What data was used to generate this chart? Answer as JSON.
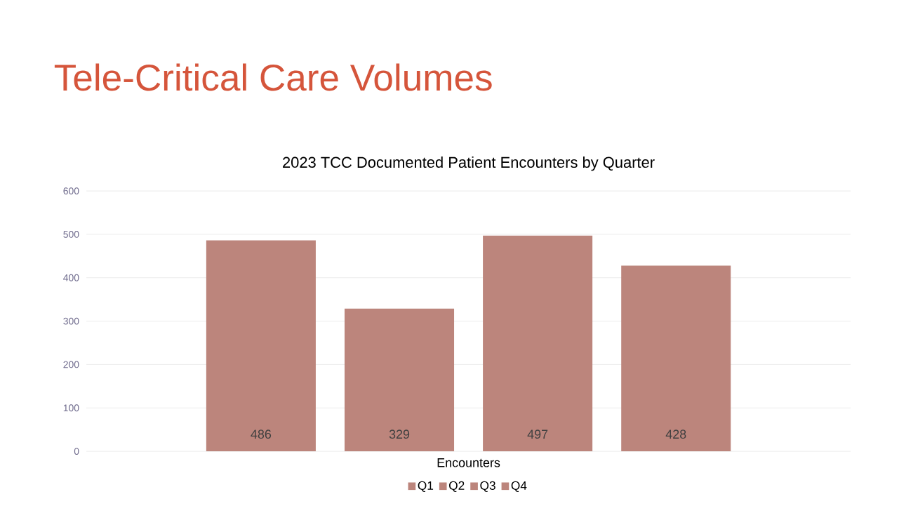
{
  "chart_data": {
    "type": "bar",
    "title": "Tele-Critical Care Volumes",
    "subtitle": "2023 TCC Documented Patient Encounters by Quarter",
    "categories": [
      "Encounters"
    ],
    "series": [
      {
        "name": "Q1",
        "color": "#bc857c",
        "values": [
          486
        ]
      },
      {
        "name": "Q2",
        "color": "#bc857c",
        "values": [
          329
        ]
      },
      {
        "name": "Q3",
        "color": "#bc857c",
        "values": [
          497
        ]
      },
      {
        "name": "Q4",
        "color": "#bc857c",
        "values": [
          428
        ]
      }
    ],
    "ylim": [
      0,
      600
    ],
    "yticks": [
      0,
      100,
      200,
      300,
      400,
      500,
      600
    ],
    "grid": "y",
    "legend": "bottom",
    "data_labels": true
  }
}
